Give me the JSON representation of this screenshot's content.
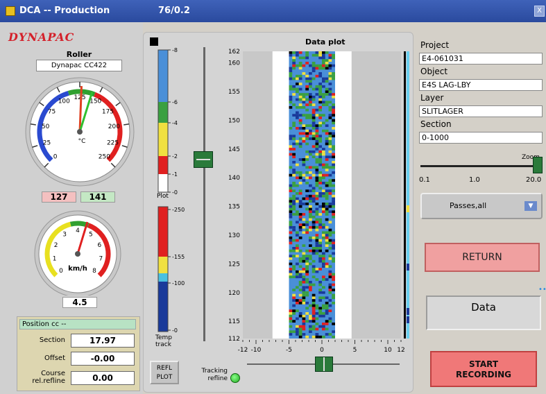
{
  "titlebar": {
    "app": "DCA -- Production",
    "version": "76/0.2",
    "close": "X"
  },
  "left": {
    "logo": "DYNAPAC",
    "roller_label": "Roller",
    "roller_value": "Dynapac CC422",
    "temp_gauge": {
      "unit": "°C",
      "ticks": [
        "0",
        "25",
        "50",
        "75",
        "100",
        "125",
        "150",
        "175",
        "200",
        "225",
        "250"
      ],
      "needle1": 127,
      "needle2": 141
    },
    "temp_values": {
      "left": "127",
      "right": "141"
    },
    "speed_gauge": {
      "unit": "km/h",
      "ticks": [
        "0",
        "1",
        "2",
        "3",
        "4",
        "5",
        "6",
        "7",
        "8"
      ],
      "needle": 4.5
    },
    "speed_value": "4.5",
    "position": {
      "title": "Position cc --",
      "section_label": "Section",
      "section_value": "17.97",
      "offset_label": "Offset",
      "offset_value": "-0.00",
      "course_label_1": "Course",
      "course_label_2": "rel.refline",
      "course_value": "0.00"
    }
  },
  "middle": {
    "plot_title": "Data plot",
    "plot_scale": {
      "ticks": [
        "8",
        "6",
        "4",
        "2",
        "1",
        "0"
      ],
      "label": "Plot"
    },
    "temp_scale": {
      "ticks": [
        "250",
        "155",
        "100",
        "0"
      ],
      "label_1": "Temp",
      "label_2": "track"
    },
    "y_axis": [
      "162",
      "160",
      "155",
      "150",
      "145",
      "140",
      "135",
      "130",
      "125",
      "120",
      "115",
      "112"
    ],
    "x_axis": [
      "-12",
      "-10",
      "-5",
      "0",
      "5",
      "10",
      "12"
    ],
    "refl_button": {
      "line1": "REFL",
      "line2": "PLOT"
    },
    "tracking": {
      "line1": "Tracking",
      "line2": "refline"
    },
    "colors": {
      "blue": "#4a8fd8",
      "green": "#3aa040",
      "yellow": "#f0e040",
      "red": "#e02020",
      "dark": "#1a3a9a"
    }
  },
  "right": {
    "project_label": "Project",
    "project_value": "E4-061031",
    "object_label": "Object",
    "object_value": "E4S LAG-LBY",
    "layer_label": "Layer",
    "layer_value": "SLITLAGER",
    "section_label": "Section",
    "section_value": "0-1000",
    "zoom": {
      "label": "Zoom",
      "ticks": [
        "0.1",
        "1.0",
        "20.0"
      ],
      "value": 20.0
    },
    "passes_select": "Passes,all",
    "return_label": "RETURN",
    "data_label": "Data",
    "start_line1": "START",
    "start_line2": "RECORDING"
  }
}
